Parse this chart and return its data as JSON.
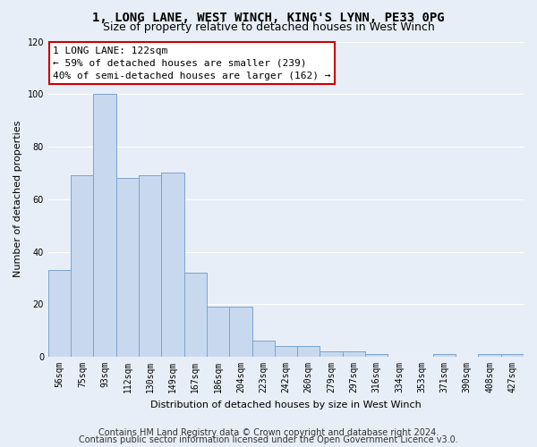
{
  "title1": "1, LONG LANE, WEST WINCH, KING'S LYNN, PE33 0PG",
  "title2": "Size of property relative to detached houses in West Winch",
  "xlabel": "Distribution of detached houses by size in West Winch",
  "ylabel": "Number of detached properties",
  "bar_color": "#c8d8ee",
  "bar_edge_color": "#7ba4cc",
  "categories": [
    "56sqm",
    "75sqm",
    "93sqm",
    "112sqm",
    "130sqm",
    "149sqm",
    "167sqm",
    "186sqm",
    "204sqm",
    "223sqm",
    "242sqm",
    "260sqm",
    "279sqm",
    "297sqm",
    "316sqm",
    "334sqm",
    "353sqm",
    "371sqm",
    "390sqm",
    "408sqm",
    "427sqm"
  ],
  "values": [
    33,
    69,
    100,
    68,
    69,
    70,
    32,
    19,
    19,
    6,
    4,
    4,
    2,
    2,
    1,
    0,
    0,
    1,
    0,
    1,
    1
  ],
  "annotation_text": "1 LONG LANE: 122sqm\n← 59% of detached houses are smaller (239)\n40% of semi-detached houses are larger (162) →",
  "annotation_box_color": "white",
  "annotation_box_edge": "#cc0000",
  "ylim": [
    0,
    120
  ],
  "yticks": [
    0,
    20,
    40,
    60,
    80,
    100,
    120
  ],
  "footer1": "Contains HM Land Registry data © Crown copyright and database right 2024.",
  "footer2": "Contains public sector information licensed under the Open Government Licence v3.0.",
  "bg_color": "#e8eef7",
  "plot_bg_color": "#e8eef7",
  "grid_color": "#ffffff",
  "title1_fontsize": 10,
  "title2_fontsize": 9,
  "axis_label_fontsize": 8,
  "tick_fontsize": 7,
  "annotation_fontsize": 8,
  "footer_fontsize": 7
}
